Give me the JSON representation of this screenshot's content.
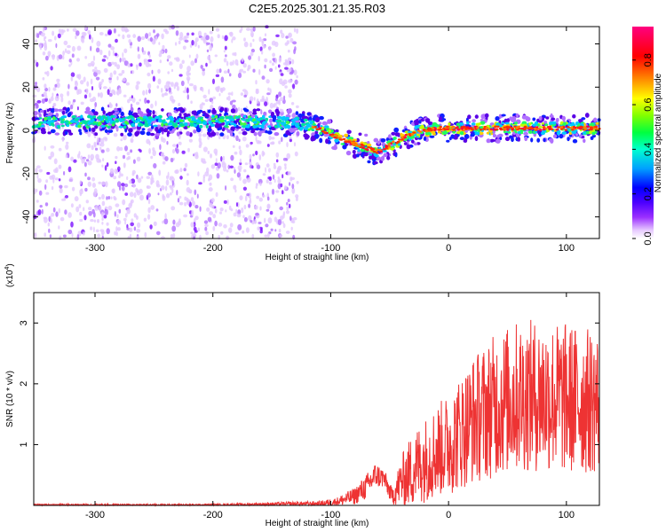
{
  "title": "C2E5.2025.301.21.35.R03",
  "chart_data": [
    {
      "type": "heatmap",
      "xlabel": "Height of straight line (km)",
      "ylabel": "Frequency (Hz)",
      "xlim": [
        -352,
        128
      ],
      "ylim": [
        -50,
        48
      ],
      "xticks": [
        -300,
        -200,
        -100,
        0,
        100
      ],
      "xtick_labels": [
        "-300",
        "-200",
        "-100",
        "0",
        "100"
      ],
      "yticks": [
        -40,
        -20,
        0,
        20,
        40
      ],
      "ytick_labels": [
        "-40",
        "-20",
        "0",
        "20",
        "40"
      ],
      "colorbar": {
        "label": "Normalized spectral amplitude",
        "range": [
          0,
          0.95
        ],
        "ticks": [
          0.0,
          0.2,
          0.4,
          0.6,
          0.8
        ],
        "tick_labels": [
          "0.0",
          "0.2",
          "0.4",
          "0.6",
          "0.8"
        ],
        "colors": [
          "#ffffff",
          "#e6c8ff",
          "#9b30ff",
          "#5a00e6",
          "#0000ff",
          "#00c8ff",
          "#00ff80",
          "#ffff00",
          "#ff8000",
          "#ff0000",
          "#ff0080"
        ]
      },
      "ridge": {
        "x": [
          -352,
          -300,
          -250,
          -200,
          -150,
          -128,
          -110,
          -95,
          -80,
          -70,
          -60,
          -50,
          -40,
          -30,
          -20,
          -10,
          0,
          40,
          80,
          128
        ],
        "y": [
          4,
          4,
          4,
          4,
          4,
          3,
          1,
          -3,
          -6,
          -8,
          -10,
          -7,
          -4,
          -1,
          0,
          1,
          1,
          1,
          1,
          1
        ]
      },
      "scatter_noise_region": [
        -352,
        -128
      ]
    },
    {
      "type": "line",
      "xlabel": "Height of straight line (km)",
      "ylabel": "SNR (10 * v/v)",
      "ylabel_exponent": "(x10",
      "exponent_power": "4",
      "exponent_close": ")",
      "xlim": [
        -352,
        128
      ],
      "ylim": [
        0,
        3.5
      ],
      "xticks": [
        -300,
        -200,
        -100,
        0,
        100
      ],
      "xtick_labels": [
        "-300",
        "-200",
        "-100",
        "0",
        "100"
      ],
      "yticks": [
        1,
        2,
        3
      ],
      "ytick_labels": [
        "1",
        "2",
        "3"
      ],
      "color": "#ee3333",
      "envelope": {
        "x": [
          -352,
          -200,
          -110,
          -95,
          -80,
          -70,
          -62,
          -55,
          -48,
          -40,
          -30,
          -20,
          -10,
          0,
          20,
          40,
          60,
          80,
          100,
          128
        ],
        "mean": [
          0.01,
          0.01,
          0.03,
          0.06,
          0.15,
          0.3,
          0.5,
          0.45,
          0.15,
          0.4,
          0.6,
          0.75,
          0.9,
          1.0,
          1.4,
          1.65,
          1.8,
          1.8,
          1.75,
          1.7
        ],
        "spread": [
          0.01,
          0.01,
          0.03,
          0.05,
          0.1,
          0.15,
          0.15,
          0.12,
          0.1,
          0.3,
          0.45,
          0.5,
          0.55,
          0.6,
          0.75,
          0.85,
          0.9,
          0.9,
          0.9,
          0.85
        ]
      }
    }
  ]
}
